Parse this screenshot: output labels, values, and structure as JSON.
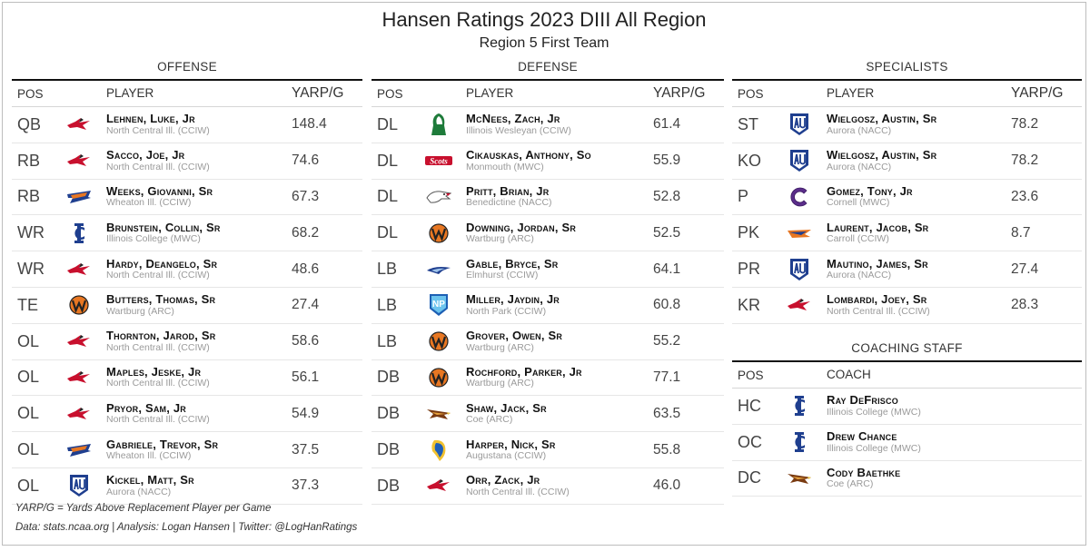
{
  "header": {
    "title": "Hansen Ratings 2023 DIII All Region",
    "subtitle": "Region 5 First Team"
  },
  "columns": {
    "pos": "POS",
    "player": "PLAYER",
    "value": "YARP/G",
    "coach": "COACH"
  },
  "offense": {
    "title": "OFFENSE",
    "rows": [
      {
        "pos": "QB",
        "name": "Lehnen, Luke, Jr",
        "team": "North Central Ill. (CCIW)",
        "value": "148.4",
        "logo": "cardinal-logo-icon"
      },
      {
        "pos": "RB",
        "name": "Sacco, Joe, Jr",
        "team": "North Central Ill. (CCIW)",
        "value": "74.6",
        "logo": "cardinal-logo-icon"
      },
      {
        "pos": "RB",
        "name": "Weeks, Giovanni, Sr",
        "team": "Wheaton Ill. (CCIW)",
        "value": "67.3",
        "logo": "thunder-logo-icon"
      },
      {
        "pos": "WR",
        "name": "Brunstein, Collin, Sr",
        "team": "Illinois College (MWC)",
        "value": "68.2",
        "logo": "ic-logo-icon"
      },
      {
        "pos": "WR",
        "name": "Hardy, Deangelo, Sr",
        "team": "North Central Ill. (CCIW)",
        "value": "48.6",
        "logo": "cardinal-logo-icon"
      },
      {
        "pos": "TE",
        "name": "Butters, Thomas, Sr",
        "team": "Wartburg (ARC)",
        "value": "27.4",
        "logo": "w-logo-icon"
      },
      {
        "pos": "OL",
        "name": "Thornton, Jarod, Sr",
        "team": "North Central Ill. (CCIW)",
        "value": "58.6",
        "logo": "cardinal-logo-icon"
      },
      {
        "pos": "OL",
        "name": "Maples, Jeske, Jr",
        "team": "North Central Ill. (CCIW)",
        "value": "56.1",
        "logo": "cardinal-logo-icon"
      },
      {
        "pos": "OL",
        "name": "Pryor, Sam, Jr",
        "team": "North Central Ill. (CCIW)",
        "value": "54.9",
        "logo": "cardinal-logo-icon"
      },
      {
        "pos": "OL",
        "name": "Gabriele, Trevor, Sr",
        "team": "Wheaton Ill. (CCIW)",
        "value": "37.5",
        "logo": "thunder-logo-icon"
      },
      {
        "pos": "OL",
        "name": "Kickel, Matt, Sr",
        "team": "Aurora (NACC)",
        "value": "37.3",
        "logo": "au-logo-icon"
      }
    ]
  },
  "defense": {
    "title": "DEFENSE",
    "rows": [
      {
        "pos": "DL",
        "name": "McNees, Zach, Jr",
        "team": "Illinois Wesleyan (CCIW)",
        "value": "61.4",
        "logo": "titan-logo-icon"
      },
      {
        "pos": "DL",
        "name": "Cikauskas, Anthony, So",
        "team": "Monmouth (MWC)",
        "value": "55.9",
        "logo": "scots-logo-icon"
      },
      {
        "pos": "DL",
        "name": "Pritt, Brian, Jr",
        "team": "Benedictine (NACC)",
        "value": "52.8",
        "logo": "eagle-logo-icon"
      },
      {
        "pos": "DL",
        "name": "Downing, Jordan, Sr",
        "team": "Wartburg (ARC)",
        "value": "52.5",
        "logo": "w-logo-icon"
      },
      {
        "pos": "LB",
        "name": "Gable, Bryce, Sr",
        "team": "Elmhurst (CCIW)",
        "value": "64.1",
        "logo": "bluejay-logo-icon"
      },
      {
        "pos": "LB",
        "name": "Miller, Jaydin, Jr",
        "team": "North Park (CCIW)",
        "value": "60.8",
        "logo": "np-logo-icon"
      },
      {
        "pos": "LB",
        "name": "Grover, Owen, Sr",
        "team": "Wartburg (ARC)",
        "value": "55.2",
        "logo": "w-logo-icon"
      },
      {
        "pos": "DB",
        "name": "Rochford, Parker, Jr",
        "team": "Wartburg (ARC)",
        "value": "77.1",
        "logo": "w-logo-icon"
      },
      {
        "pos": "DB",
        "name": "Shaw, Jack, Sr",
        "team": "Coe (ARC)",
        "value": "63.5",
        "logo": "kohawk-logo-icon"
      },
      {
        "pos": "DB",
        "name": "Harper, Nick, Sr",
        "team": "Augustana (CCIW)",
        "value": "55.8",
        "logo": "viking-logo-icon"
      },
      {
        "pos": "DB",
        "name": "Orr, Zack, Jr",
        "team": "North Central Ill. (CCIW)",
        "value": "46.0",
        "logo": "cardinal-logo-icon"
      }
    ]
  },
  "specialists": {
    "title": "SPECIALISTS",
    "rows": [
      {
        "pos": "ST",
        "name": "Wielgosz, Austin, Sr",
        "team": "Aurora (NACC)",
        "value": "78.2",
        "logo": "au-logo-icon"
      },
      {
        "pos": "KO",
        "name": "Wielgosz, Austin, Sr",
        "team": "Aurora (NACC)",
        "value": "78.2",
        "logo": "au-logo-icon"
      },
      {
        "pos": "P",
        "name": "Gomez, Tony, Jr",
        "team": "Cornell (MWC)",
        "value": "23.6",
        "logo": "c-logo-icon"
      },
      {
        "pos": "PK",
        "name": "Laurent, Jacob, Sr",
        "team": "Carroll (CCIW)",
        "value": "8.7",
        "logo": "pioneer-logo-icon"
      },
      {
        "pos": "PR",
        "name": "Mautino, James, Sr",
        "team": "Aurora (NACC)",
        "value": "27.4",
        "logo": "au-logo-icon"
      },
      {
        "pos": "KR",
        "name": "Lombardi, Joey, Sr",
        "team": "North Central Ill. (CCIW)",
        "value": "28.3",
        "logo": "cardinal-logo-icon"
      }
    ]
  },
  "coaching": {
    "title": "COACHING STAFF",
    "rows": [
      {
        "pos": "HC",
        "name": "Ray DeFrisco",
        "team": "Illinois College (MWC)",
        "logo": "ic-logo-icon"
      },
      {
        "pos": "OC",
        "name": "Drew Chance",
        "team": "Illinois College (MWC)",
        "logo": "ic-logo-icon"
      },
      {
        "pos": "DC",
        "name": "Cody Baethke",
        "team": "Coe (ARC)",
        "logo": "kohawk-logo-icon"
      }
    ]
  },
  "footnotes": {
    "definition": "YARP/G = Yards Above Replacement Player per Game",
    "source": "Data: stats.ncaa.org | Analysis: Logan Hansen | Twitter: @LogHanRatings"
  },
  "colors": {
    "cardinal": "#c8102e",
    "navy": "#1f3f8f",
    "orange": "#e87722",
    "black": "#111111"
  }
}
